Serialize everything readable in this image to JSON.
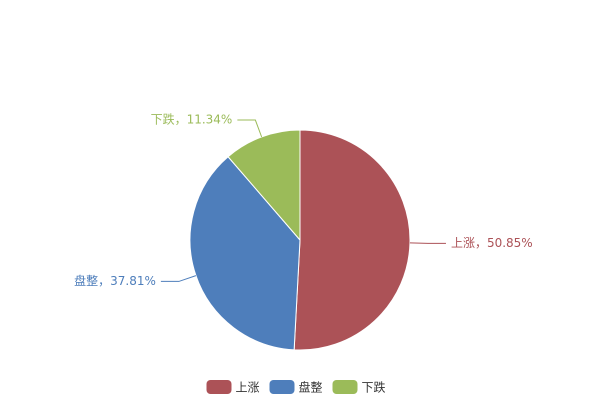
{
  "chart_data": {
    "type": "pie",
    "categories": [
      "上涨",
      "盘整",
      "下跌"
    ],
    "values": [
      50.85,
      37.81,
      11.34
    ],
    "value_labels": [
      "上涨，50.85%",
      "盘整，37.81%",
      "下跌，11.34%"
    ],
    "colors": [
      "#ac5257",
      "#4e7ebb",
      "#9bbb59"
    ],
    "legend": "bottom"
  }
}
